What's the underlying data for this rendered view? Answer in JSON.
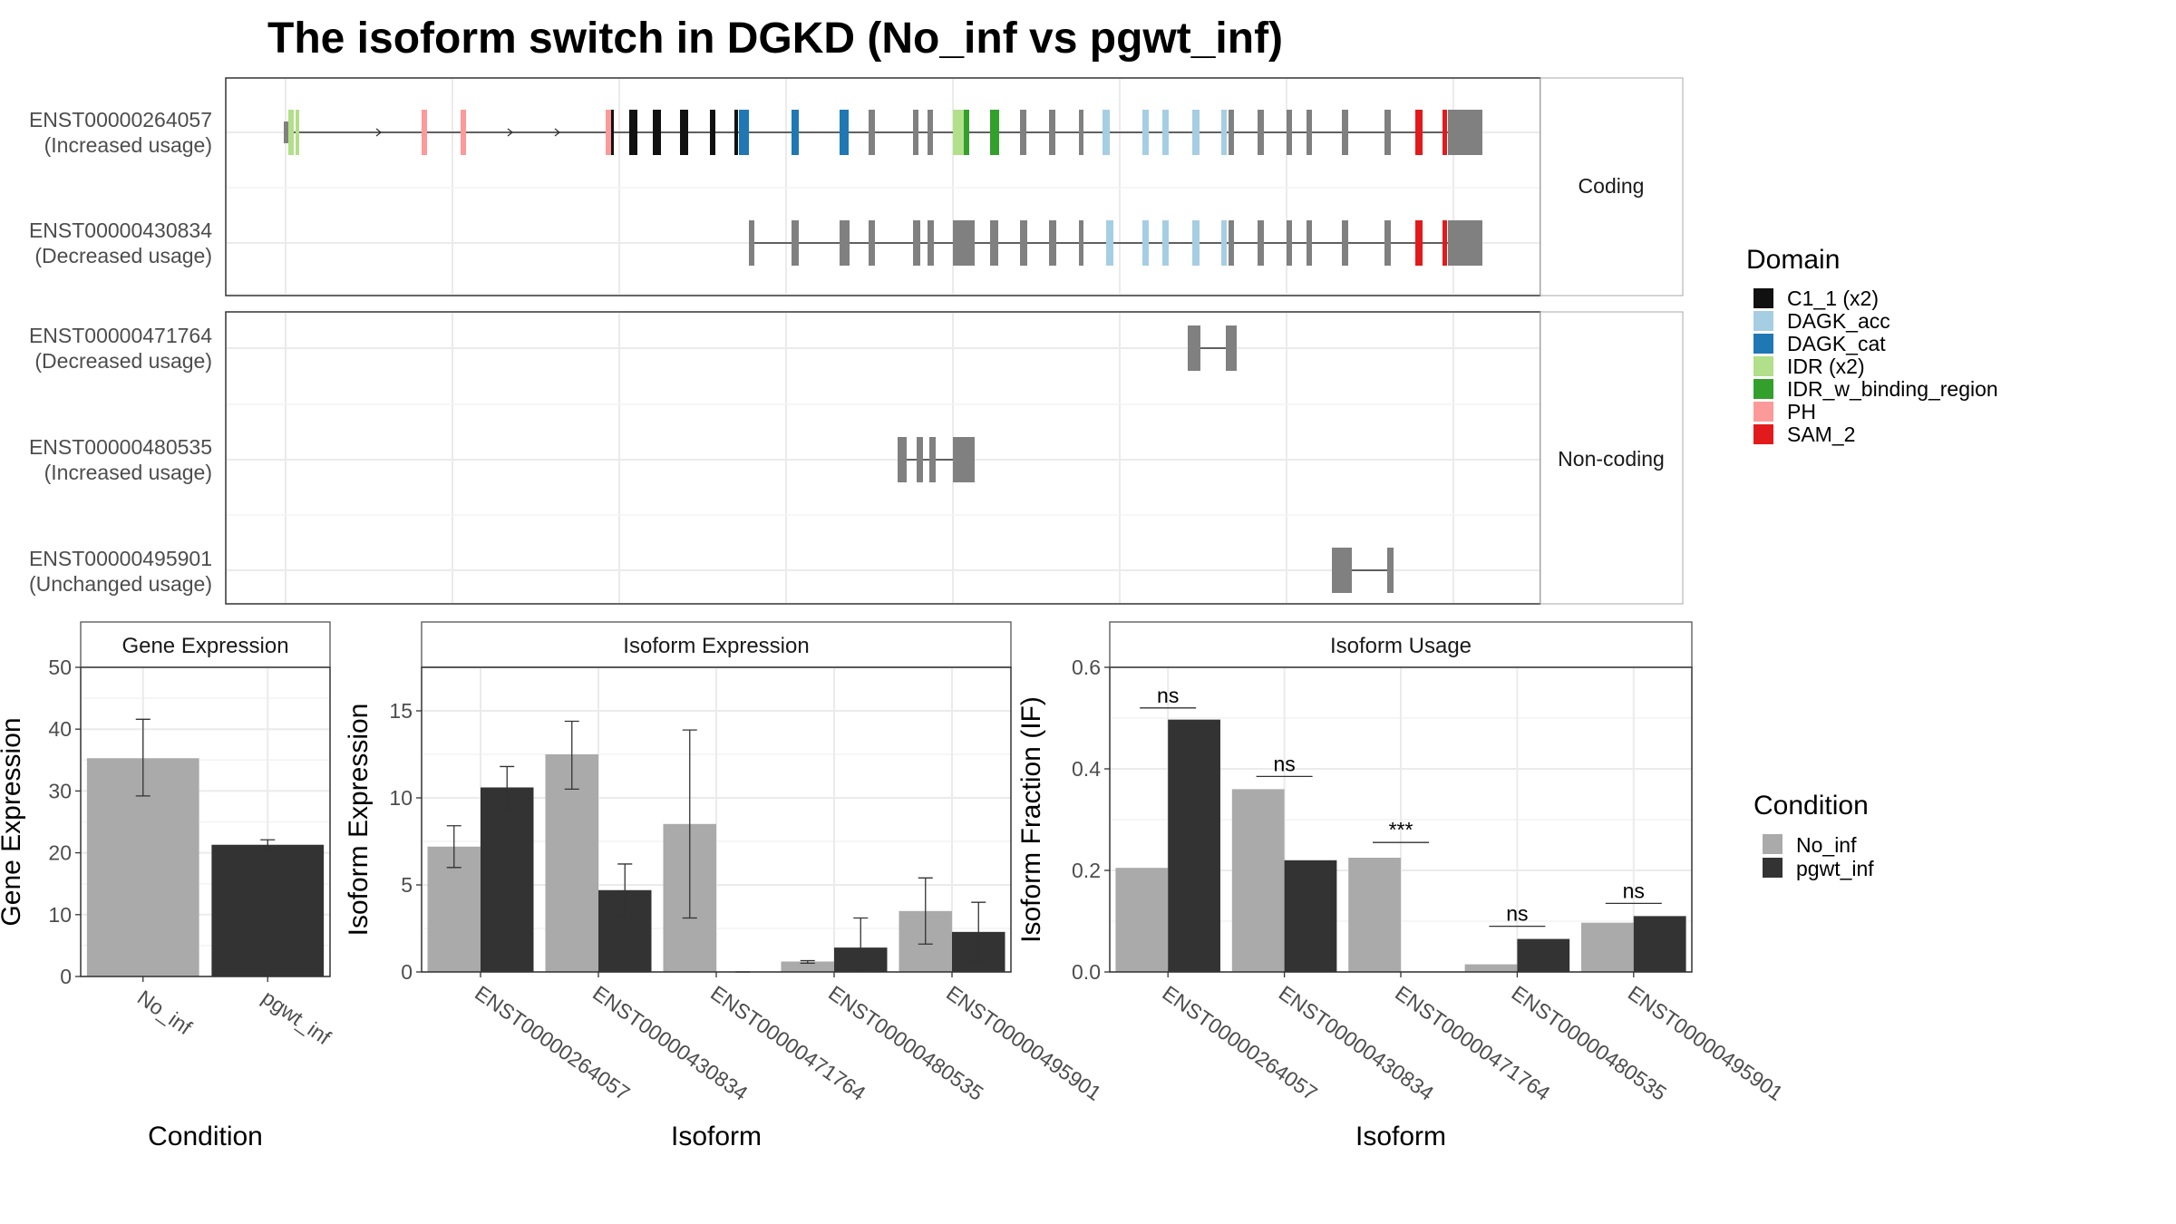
{
  "title": "The isoform switch in DGKD (No_inf vs pgwt_inf)",
  "colors": {
    "No_inf": "#aaaaaa",
    "pgwt_inf": "#333333",
    "exon": "#808080",
    "grid": "#ebebeb"
  },
  "isoform_structure": {
    "facets": [
      "Coding",
      "Non-coding"
    ],
    "labels": [
      {
        "id": "ENST00000264057",
        "usage": "(Increased usage)"
      },
      {
        "id": "ENST00000430834",
        "usage": "(Decreased usage)"
      },
      {
        "id": "ENST00000471764",
        "usage": "(Decreased usage)"
      },
      {
        "id": "ENST00000480535",
        "usage": "(Increased usage)"
      },
      {
        "id": "ENST00000495901",
        "usage": "(Unchanged usage)"
      }
    ]
  },
  "domain_legend": {
    "title": "Domain",
    "items": [
      {
        "label": "C1_1 (x2)",
        "color": "#111111"
      },
      {
        "label": "DAGK_acc",
        "color": "#a6cee3"
      },
      {
        "label": "DAGK_cat",
        "color": "#1f78b4"
      },
      {
        "label": "IDR (x2)",
        "color": "#b2df8a"
      },
      {
        "label": "IDR_w_binding_region",
        "color": "#33a02c"
      },
      {
        "label": "PH",
        "color": "#fb9a99"
      },
      {
        "label": "SAM_2",
        "color": "#e31a1c"
      }
    ]
  },
  "condition_legend": {
    "title": "Condition",
    "items": [
      "No_inf",
      "pgwt_inf"
    ]
  },
  "chart_data": [
    {
      "type": "bar",
      "title": "Gene Expression",
      "xlabel": "Condition",
      "ylabel": "Gene Expression",
      "ylim": [
        0,
        50
      ],
      "yticks": [
        0,
        10,
        20,
        30,
        40,
        50
      ],
      "categories": [
        "No_inf",
        "pgwt_inf"
      ],
      "values": [
        35.3,
        21.3
      ],
      "err_low": [
        29.2,
        20.6
      ],
      "err_high": [
        41.6,
        22.1
      ]
    },
    {
      "type": "bar",
      "title": "Isoform Expression",
      "xlabel": "Isoform",
      "ylabel": "Isoform Expression",
      "ylim": [
        0,
        17.5
      ],
      "yticks": [
        0,
        5,
        10,
        15
      ],
      "categories": [
        "ENST00000264057",
        "ENST00000430834",
        "ENST00000471764",
        "ENST00000480535",
        "ENST00000495901"
      ],
      "series": [
        {
          "name": "No_inf",
          "values": [
            7.2,
            12.5,
            8.5,
            0.6,
            3.5
          ],
          "err_low": [
            6.0,
            10.5,
            3.1,
            0.5,
            1.6
          ],
          "err_high": [
            8.4,
            14.4,
            13.9,
            0.65,
            5.4
          ]
        },
        {
          "name": "pgwt_inf",
          "values": [
            10.6,
            4.7,
            0.0,
            1.4,
            2.3
          ],
          "err_low": [
            9.4,
            3.2,
            0.0,
            0.1,
            0.6
          ],
          "err_high": [
            11.8,
            6.2,
            0.0,
            3.1,
            4.0
          ]
        }
      ]
    },
    {
      "type": "bar",
      "title": "Isoform Usage",
      "xlabel": "Isoform",
      "ylabel": "Isoform Fraction (IF)",
      "ylim": [
        0,
        0.6
      ],
      "yticks": [
        "0.0",
        "0.2",
        "0.4",
        "0.6"
      ],
      "categories": [
        "ENST00000264057",
        "ENST00000430834",
        "ENST00000471764",
        "ENST00000480535",
        "ENST00000495901"
      ],
      "series": [
        {
          "name": "No_inf",
          "values": [
            0.205,
            0.36,
            0.225,
            0.015,
            0.097
          ]
        },
        {
          "name": "pgwt_inf",
          "values": [
            0.497,
            0.22,
            0.0,
            0.065,
            0.11
          ]
        }
      ],
      "significance": [
        "ns",
        "ns",
        "***",
        "ns",
        "ns"
      ],
      "sig_line_y": [
        0.52,
        0.385,
        0.255,
        0.09,
        0.135
      ]
    }
  ]
}
